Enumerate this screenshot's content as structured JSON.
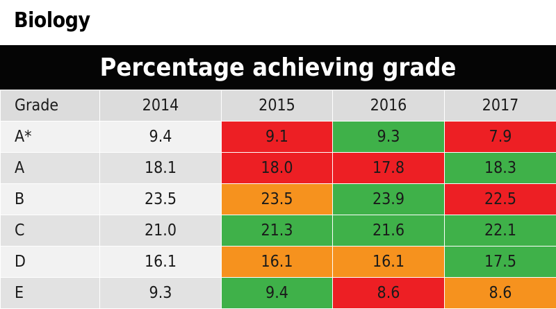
{
  "subject": "Biology",
  "banner": "Percentage achieving grade",
  "colors": {
    "red": "#ed1f24",
    "green": "#3fb149",
    "orange": "#f6921e",
    "black": "#050505"
  },
  "chart_data": {
    "type": "table",
    "title": "Percentage achieving grade",
    "columns": [
      "Grade",
      "2014",
      "2015",
      "2016",
      "2017"
    ],
    "rows": [
      {
        "grade": "A*",
        "values": [
          "9.4",
          "9.1",
          "9.3",
          "7.9"
        ],
        "status": [
          "neutral",
          "red",
          "green",
          "red"
        ]
      },
      {
        "grade": "A",
        "values": [
          "18.1",
          "18.0",
          "17.8",
          "18.3"
        ],
        "status": [
          "neutral",
          "red",
          "red",
          "green"
        ]
      },
      {
        "grade": "B",
        "values": [
          "23.5",
          "23.5",
          "23.9",
          "22.5"
        ],
        "status": [
          "neutral",
          "orange",
          "green",
          "red"
        ]
      },
      {
        "grade": "C",
        "values": [
          "21.0",
          "21.3",
          "21.6",
          "22.1"
        ],
        "status": [
          "neutral",
          "green",
          "green",
          "green"
        ]
      },
      {
        "grade": "D",
        "values": [
          "16.1",
          "16.1",
          "16.1",
          "17.5"
        ],
        "status": [
          "neutral",
          "orange",
          "orange",
          "green"
        ]
      },
      {
        "grade": "E",
        "values": [
          "9.3",
          "9.4",
          "8.6",
          "8.6"
        ],
        "status": [
          "neutral",
          "green",
          "red",
          "orange"
        ]
      }
    ]
  }
}
